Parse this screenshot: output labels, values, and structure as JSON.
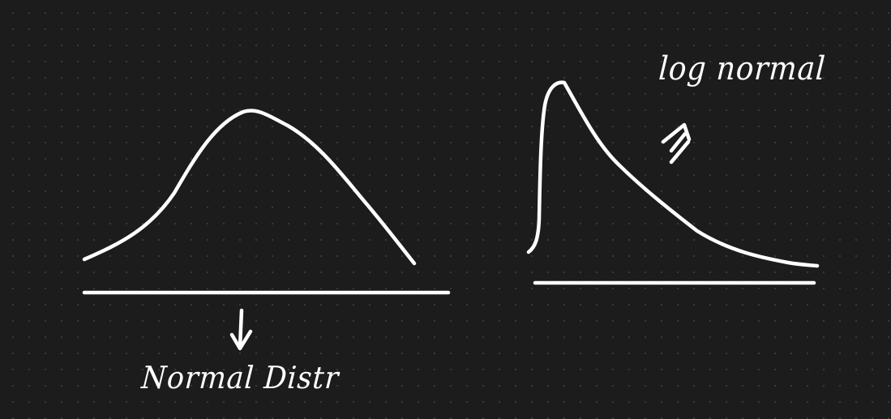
{
  "canvas": {
    "background": "#1c1c1c",
    "dot_color": "#3a3a3a",
    "ink_color": "#ffffff"
  },
  "normal_sketch": {
    "label": "Normal Distr",
    "arrow": "down-arrow"
  },
  "lognormal_sketch": {
    "label": "log normal",
    "arrow": "double-up-arrow"
  }
}
